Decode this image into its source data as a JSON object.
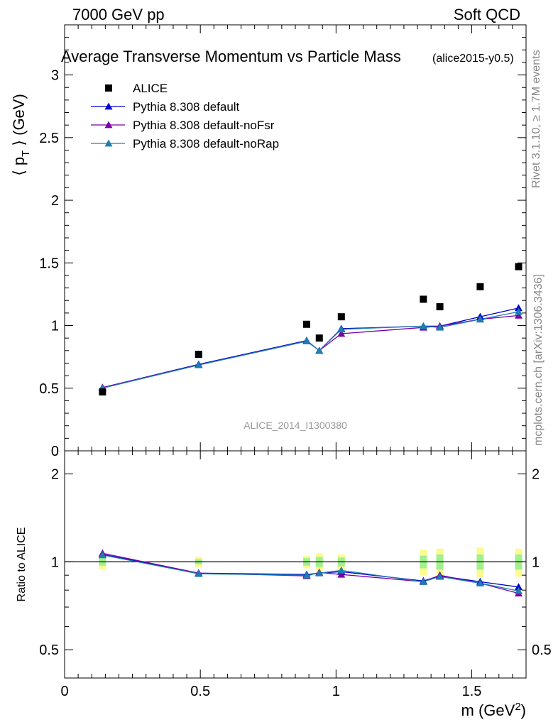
{
  "header": {
    "energy": "7000 GeV pp",
    "category": "Soft QCD",
    "title": "Average Transverse Momentum vs Particle Mass",
    "subtitle": "(alice2015-y0.5)",
    "analysis_id": "ALICE_2014_I1300380",
    "rivet_text": "Rivet 3.1.10, ≥ 1.7M events",
    "mcplots_text": "mcplots.cern.ch [arXiv:1306.3436]"
  },
  "axes": {
    "ylabel_main": "⟨ p",
    "ylabel_main_sub": "T",
    "ylabel_main_tail": " ⟩ (GeV)",
    "ylabel_ratio": "Ratio to ALICE",
    "xlabel": "m (GeV",
    "xlabel_sup": "2",
    "xlabel_tail": ")",
    "xticks": [
      {
        "v": 0,
        "label": "0"
      },
      {
        "v": 0.5,
        "label": "0.5"
      },
      {
        "v": 1,
        "label": "1"
      },
      {
        "v": 1.5,
        "label": "1.5"
      }
    ],
    "yticks_main": [
      {
        "v": 0,
        "label": "0"
      },
      {
        "v": 0.5,
        "label": "0.5"
      },
      {
        "v": 1,
        "label": "1"
      },
      {
        "v": 1.5,
        "label": "1.5"
      },
      {
        "v": 2,
        "label": "2"
      },
      {
        "v": 2.5,
        "label": "2.5"
      },
      {
        "v": 3,
        "label": "3"
      }
    ],
    "yticks_ratio": [
      {
        "v": 0.5,
        "label": "0.5"
      },
      {
        "v": 1,
        "label": "1"
      },
      {
        "v": 2,
        "label": "2"
      }
    ]
  },
  "legend": [
    {
      "label": "ALICE",
      "color": "#000000",
      "marker": "square"
    },
    {
      "label": "Pythia 8.308 default",
      "color": "#0000cc",
      "marker": "triangle"
    },
    {
      "label": "Pythia 8.308 default-noFsr",
      "color": "#7a00a8",
      "marker": "triangle"
    },
    {
      "label": "Pythia 8.308 default-noRap",
      "color": "#1a7fb0",
      "marker": "triangle"
    }
  ],
  "chart_data": [
    {
      "type": "scatter",
      "panel": "main",
      "xlim": [
        0,
        1.7
      ],
      "ylim": [
        0,
        3.4
      ],
      "log_y": false,
      "x": [
        0.1396,
        0.4937,
        0.8917,
        0.9383,
        1.0195,
        1.3217,
        1.3824,
        1.5311,
        1.6725
      ],
      "series": [
        {
          "name": "ALICE",
          "values": [
            0.47,
            0.77,
            1.01,
            0.9,
            1.07,
            1.21,
            1.15,
            1.31,
            1.47
          ]
        },
        {
          "name": "Pythia 8.308 default",
          "values": [
            0.505,
            0.69,
            0.88,
            0.8,
            0.975,
            0.995,
            0.995,
            1.07,
            1.14
          ]
        },
        {
          "name": "Pythia 8.308 default-noFsr",
          "values": [
            0.505,
            0.685,
            0.875,
            0.8,
            0.935,
            0.985,
            0.995,
            1.05,
            1.08
          ]
        },
        {
          "name": "Pythia 8.308 default-noRap",
          "values": [
            0.5,
            0.685,
            0.875,
            0.8,
            0.97,
            0.995,
            0.985,
            1.05,
            1.11
          ]
        }
      ]
    },
    {
      "type": "line",
      "panel": "ratio",
      "xlim": [
        0,
        1.7
      ],
      "ylim": [
        0.4,
        2.4
      ],
      "log_y": true,
      "x": [
        0.1396,
        0.4937,
        0.8917,
        0.9383,
        1.0195,
        1.3217,
        1.3824,
        1.5311,
        1.6725
      ],
      "ref_line": 1,
      "uncertainty_bands": {
        "stat_half_width": [
          0.03,
          0.02,
          0.03,
          0.04,
          0.035,
          0.05,
          0.06,
          0.06,
          0.06
        ],
        "total_half_width": [
          0.06,
          0.04,
          0.05,
          0.07,
          0.06,
          0.1,
          0.11,
          0.12,
          0.11
        ]
      },
      "series": [
        {
          "name": "Pythia 8.308 default",
          "values": [
            1.06,
            0.915,
            0.905,
            0.915,
            0.925,
            0.86,
            0.895,
            0.855,
            0.82
          ]
        },
        {
          "name": "Pythia 8.308 default-noFsr",
          "values": [
            1.07,
            0.915,
            0.895,
            0.92,
            0.905,
            0.855,
            0.9,
            0.845,
            0.78
          ]
        },
        {
          "name": "Pythia 8.308 default-noRap",
          "values": [
            1.055,
            0.91,
            0.9,
            0.915,
            0.935,
            0.855,
            0.89,
            0.845,
            0.795
          ]
        }
      ]
    }
  ]
}
